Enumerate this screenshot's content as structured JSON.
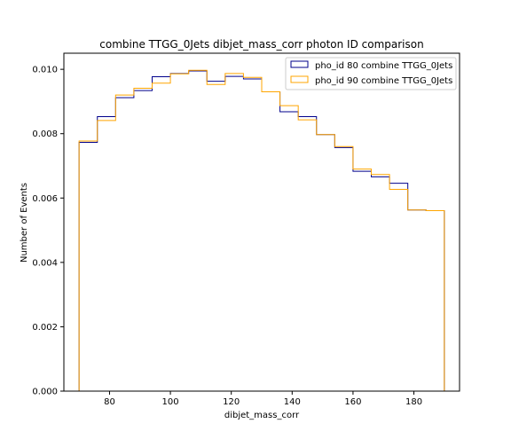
{
  "chart_data": {
    "type": "histogram",
    "title": "combine TTGG_0Jets dibjet_mass_corr photon ID comparison",
    "xlabel": "dibjet_mass_corr",
    "ylabel": "Number of Events",
    "xlim": [
      65,
      195
    ],
    "ylim": [
      0,
      0.0105
    ],
    "xticks": [
      80,
      100,
      120,
      140,
      160,
      180
    ],
    "yticks": [
      0.0,
      0.002,
      0.004,
      0.006,
      0.008,
      0.01
    ],
    "ytick_labels": [
      "0.000",
      "0.002",
      "0.004",
      "0.006",
      "0.008",
      "0.010"
    ],
    "grid": false,
    "legend_position": "top-right",
    "bin_edges": [
      70,
      76,
      82,
      88,
      94,
      100,
      106,
      112,
      118,
      124,
      130,
      136,
      142,
      148,
      154,
      160,
      166,
      172,
      178,
      184,
      190
    ],
    "series": [
      {
        "name": "pho_id 80 combine TTGG_0Jets",
        "color": "#00008b",
        "values": [
          0.00773,
          0.00853,
          0.00912,
          0.00934,
          0.00977,
          0.00987,
          0.00995,
          0.00963,
          0.00978,
          0.0097,
          0.0093,
          0.00868,
          0.00853,
          0.00797,
          0.00757,
          0.00683,
          0.00666,
          0.00646,
          0.00563,
          0.00561
        ]
      },
      {
        "name": "pho_id 90 combine TTGG_0Jets",
        "color": "#ffa500",
        "values": [
          0.00777,
          0.00841,
          0.0092,
          0.00941,
          0.00957,
          0.00986,
          0.00997,
          0.00953,
          0.00987,
          0.00975,
          0.0093,
          0.00887,
          0.00843,
          0.00797,
          0.0076,
          0.0069,
          0.00673,
          0.00627,
          0.00563,
          0.00561
        ]
      }
    ]
  }
}
